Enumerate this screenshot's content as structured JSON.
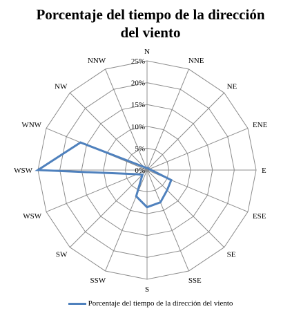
{
  "chart_data": {
    "type": "radar",
    "title_lines": [
      "Porcentaje del tiempo de la dirección",
      "del viento"
    ],
    "categories": [
      "N",
      "NNE",
      "NE",
      "ENE",
      "E",
      "ESE",
      "SE",
      "SSE",
      "S",
      "SSW",
      "SW",
      "WSW",
      "WSW",
      "WNW",
      "NW",
      "NNW"
    ],
    "series": [
      {
        "name": "Porcentaje del tiempo de la dirección del viento",
        "color": "#4f81bd",
        "values": [
          0.5,
          0.5,
          0.5,
          0.5,
          1.0,
          6.0,
          6.5,
          8.0,
          8.5,
          6.5,
          1.5,
          2.5,
          25.0,
          16.5,
          1.0,
          0.5
        ]
      }
    ],
    "r_axis": {
      "min": 0,
      "max": 25,
      "step": 5,
      "tick_labels": [
        "0%",
        "5%",
        "10%",
        "15%",
        "20%",
        "25%"
      ]
    },
    "grid": true,
    "legend_position": "bottom"
  }
}
